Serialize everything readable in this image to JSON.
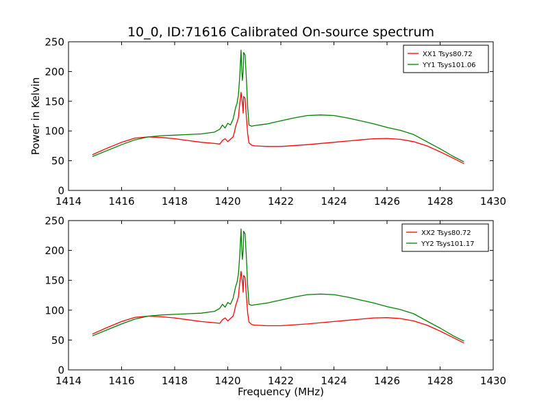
{
  "figure": {
    "title": "10_0, ID:71616 Calibrated On-source spectrum",
    "colors": {
      "xx": "#ff0000",
      "yy": "#008000",
      "frame": "#000000",
      "background": "#ffffff"
    }
  },
  "chart_data": [
    {
      "type": "line",
      "title": "10_0, ID:71616 Calibrated On-source spectrum",
      "xlabel": "",
      "ylabel": "Power in Kelvin",
      "xlim": [
        1414,
        1430
      ],
      "ylim": [
        0,
        250
      ],
      "xticks": [
        1414,
        1416,
        1418,
        1420,
        1422,
        1424,
        1426,
        1428,
        1430
      ],
      "yticks": [
        0,
        50,
        100,
        150,
        200,
        250
      ],
      "grid": false,
      "legend_position": "top-right",
      "series": [
        {
          "name": "XX1 Tsys80.72",
          "color": "#ff0000",
          "points": [
            [
              1414.9,
              60
            ],
            [
              1415.4,
              70
            ],
            [
              1416,
              81
            ],
            [
              1416.5,
              88
            ],
            [
              1417,
              90
            ],
            [
              1417.5,
              89
            ],
            [
              1418,
              87
            ],
            [
              1418.5,
              84
            ],
            [
              1419,
              81
            ],
            [
              1419.5,
              79
            ],
            [
              1419.7,
              78
            ],
            [
              1419.8,
              84
            ],
            [
              1419.9,
              87
            ],
            [
              1420,
              82
            ],
            [
              1420.1,
              86
            ],
            [
              1420.2,
              90
            ],
            [
              1420.25,
              98
            ],
            [
              1420.3,
              108
            ],
            [
              1420.35,
              115
            ],
            [
              1420.4,
              122
            ],
            [
              1420.45,
              145
            ],
            [
              1420.5,
              165
            ],
            [
              1420.52,
              158
            ],
            [
              1420.55,
              148
            ],
            [
              1420.58,
              130
            ],
            [
              1420.6,
              158
            ],
            [
              1420.65,
              155
            ],
            [
              1420.7,
              125
            ],
            [
              1420.75,
              95
            ],
            [
              1420.8,
              80
            ],
            [
              1420.9,
              76
            ],
            [
              1421,
              75
            ],
            [
              1421.5,
              74
            ],
            [
              1422,
              74
            ],
            [
              1423,
              77
            ],
            [
              1424,
              81
            ],
            [
              1425,
              85
            ],
            [
              1425.5,
              87
            ],
            [
              1426,
              87.5
            ],
            [
              1426.5,
              86
            ],
            [
              1427,
              82
            ],
            [
              1427.5,
              75
            ],
            [
              1428,
              65
            ],
            [
              1428.5,
              54
            ],
            [
              1428.9,
              45
            ]
          ]
        },
        {
          "name": "YY1 Tsys101.06",
          "color": "#008000",
          "points": [
            [
              1414.9,
              57
            ],
            [
              1415.4,
              66
            ],
            [
              1416,
              77
            ],
            [
              1416.5,
              85
            ],
            [
              1417,
              90
            ],
            [
              1417.5,
              92
            ],
            [
              1418,
              93
            ],
            [
              1418.5,
              94
            ],
            [
              1419,
              95
            ],
            [
              1419.5,
              98
            ],
            [
              1419.7,
              103
            ],
            [
              1419.8,
              110
            ],
            [
              1419.9,
              105
            ],
            [
              1420,
              113
            ],
            [
              1420.1,
              110
            ],
            [
              1420.2,
              120
            ],
            [
              1420.25,
              130
            ],
            [
              1420.3,
              140
            ],
            [
              1420.35,
              147
            ],
            [
              1420.4,
              160
            ],
            [
              1420.45,
              190
            ],
            [
              1420.5,
              236
            ],
            [
              1420.52,
              210
            ],
            [
              1420.55,
              185
            ],
            [
              1420.58,
              200
            ],
            [
              1420.6,
              232
            ],
            [
              1420.65,
              228
            ],
            [
              1420.7,
              190
            ],
            [
              1420.75,
              140
            ],
            [
              1420.8,
              110
            ],
            [
              1420.9,
              108
            ],
            [
              1421,
              109
            ],
            [
              1421.5,
              112
            ],
            [
              1422,
              117
            ],
            [
              1422.5,
              122
            ],
            [
              1423,
              126
            ],
            [
              1423.5,
              127
            ],
            [
              1424,
              126
            ],
            [
              1424.5,
              122
            ],
            [
              1425,
              117
            ],
            [
              1425.5,
              112
            ],
            [
              1426,
              106
            ],
            [
              1426.5,
              101
            ],
            [
              1427,
              94
            ],
            [
              1427.5,
              82
            ],
            [
              1428,
              70
            ],
            [
              1428.5,
              57
            ],
            [
              1428.9,
              48
            ]
          ]
        }
      ]
    },
    {
      "type": "line",
      "title": "",
      "xlabel": "Frequency (MHz)",
      "ylabel": "",
      "xlim": [
        1414,
        1430
      ],
      "ylim": [
        0,
        250
      ],
      "xticks": [
        1414,
        1416,
        1418,
        1420,
        1422,
        1424,
        1426,
        1428,
        1430
      ],
      "yticks": [
        0,
        50,
        100,
        150,
        200,
        250
      ],
      "grid": false,
      "legend_position": "top-right",
      "series": [
        {
          "name": "XX2 Tsys80.72",
          "color": "#ff0000",
          "points": [
            [
              1414.9,
              60
            ],
            [
              1415.4,
              70
            ],
            [
              1416,
              81
            ],
            [
              1416.5,
              88
            ],
            [
              1417,
              90
            ],
            [
              1417.5,
              89
            ],
            [
              1418,
              87
            ],
            [
              1418.5,
              84
            ],
            [
              1419,
              81
            ],
            [
              1419.5,
              79
            ],
            [
              1419.7,
              78
            ],
            [
              1419.8,
              84
            ],
            [
              1419.9,
              87
            ],
            [
              1420,
              82
            ],
            [
              1420.1,
              86
            ],
            [
              1420.2,
              90
            ],
            [
              1420.25,
              98
            ],
            [
              1420.3,
              108
            ],
            [
              1420.35,
              115
            ],
            [
              1420.4,
              122
            ],
            [
              1420.45,
              145
            ],
            [
              1420.5,
              165
            ],
            [
              1420.52,
              158
            ],
            [
              1420.55,
              148
            ],
            [
              1420.58,
              130
            ],
            [
              1420.6,
              158
            ],
            [
              1420.65,
              155
            ],
            [
              1420.7,
              125
            ],
            [
              1420.75,
              95
            ],
            [
              1420.8,
              80
            ],
            [
              1420.9,
              76
            ],
            [
              1421,
              75
            ],
            [
              1421.5,
              74
            ],
            [
              1422,
              74
            ],
            [
              1423,
              77
            ],
            [
              1424,
              81
            ],
            [
              1425,
              85
            ],
            [
              1425.5,
              87
            ],
            [
              1426,
              87.5
            ],
            [
              1426.5,
              86
            ],
            [
              1427,
              82
            ],
            [
              1427.5,
              75
            ],
            [
              1428,
              65
            ],
            [
              1428.5,
              54
            ],
            [
              1428.9,
              45
            ]
          ]
        },
        {
          "name": "YY2 Tsys101.17",
          "color": "#008000",
          "points": [
            [
              1414.9,
              57
            ],
            [
              1415.4,
              66
            ],
            [
              1416,
              77
            ],
            [
              1416.5,
              85
            ],
            [
              1417,
              90
            ],
            [
              1417.5,
              92
            ],
            [
              1418,
              93
            ],
            [
              1418.5,
              94
            ],
            [
              1419,
              95
            ],
            [
              1419.5,
              98
            ],
            [
              1419.7,
              103
            ],
            [
              1419.8,
              110
            ],
            [
              1419.9,
              105
            ],
            [
              1420,
              113
            ],
            [
              1420.1,
              110
            ],
            [
              1420.2,
              120
            ],
            [
              1420.25,
              130
            ],
            [
              1420.3,
              140
            ],
            [
              1420.35,
              147
            ],
            [
              1420.4,
              160
            ],
            [
              1420.45,
              190
            ],
            [
              1420.5,
              236
            ],
            [
              1420.52,
              210
            ],
            [
              1420.55,
              185
            ],
            [
              1420.58,
              200
            ],
            [
              1420.6,
              232
            ],
            [
              1420.65,
              228
            ],
            [
              1420.7,
              190
            ],
            [
              1420.75,
              140
            ],
            [
              1420.8,
              110
            ],
            [
              1420.9,
              108
            ],
            [
              1421,
              109
            ],
            [
              1421.5,
              112
            ],
            [
              1422,
              117
            ],
            [
              1422.5,
              122
            ],
            [
              1423,
              126
            ],
            [
              1423.5,
              127
            ],
            [
              1424,
              126
            ],
            [
              1424.5,
              122
            ],
            [
              1425,
              117
            ],
            [
              1425.5,
              112
            ],
            [
              1426,
              106
            ],
            [
              1426.5,
              101
            ],
            [
              1427,
              94
            ],
            [
              1427.5,
              82
            ],
            [
              1428,
              70
            ],
            [
              1428.5,
              57
            ],
            [
              1428.9,
              48
            ]
          ]
        }
      ]
    }
  ]
}
